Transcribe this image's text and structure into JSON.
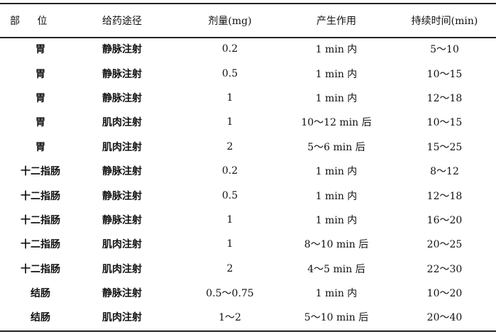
{
  "table": {
    "headers": [
      "部 位",
      "给药途径",
      "剂量(mg)",
      "产生作用",
      "持续时间(min)"
    ],
    "rows": [
      [
        "胃",
        "静脉注射",
        "0.2",
        "1 min 内",
        "5～10"
      ],
      [
        "胃",
        "静脉注射",
        "0.5",
        "1 min 内",
        "10～15"
      ],
      [
        "胃",
        "静脉注射",
        "1",
        "1 min 内",
        "12～18"
      ],
      [
        "胃",
        "肌肉注射",
        "1",
        "10～12 min 后",
        "10～15"
      ],
      [
        "胃",
        "肌肉注射",
        "2",
        "5～6 min 后",
        "15～25"
      ],
      [
        "十二指肠",
        "静脉注射",
        "0.2",
        "1 min 内",
        "8～12"
      ],
      [
        "十二指肠",
        "静脉注射",
        "0.5",
        "1 min 内",
        "12～18"
      ],
      [
        "十二指肠",
        "静脉注射",
        "1",
        "1 min 内",
        "16～20"
      ],
      [
        "十二指肠",
        "肌肉注射",
        "1",
        "8～10 min 后",
        "20～25"
      ],
      [
        "十二指肠",
        "肌肉注射",
        "2",
        "4～5 min 后",
        "22～30"
      ],
      [
        "结肠",
        "静脉注射",
        "0.5～0.75",
        "1 min 内",
        "10～20"
      ],
      [
        "结肠",
        "肌肉注射",
        "1～2",
        "5～10 min 后",
        "20～40"
      ]
    ]
  }
}
